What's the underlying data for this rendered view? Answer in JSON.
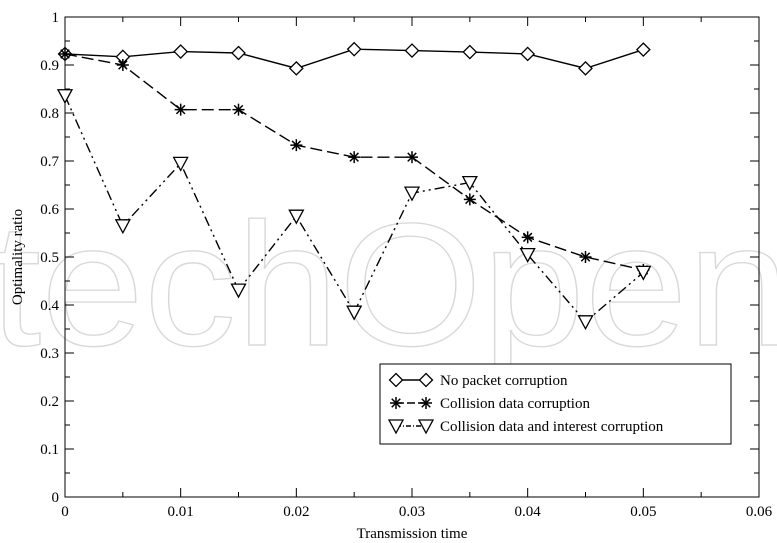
{
  "chart_data": {
    "type": "line",
    "xlabel": "Transmission time",
    "ylabel": "Optimality ratio",
    "xlim": [
      0,
      0.06
    ],
    "ylim": [
      0,
      1
    ],
    "xticks": [
      0,
      0.01,
      0.02,
      0.03,
      0.04,
      0.05,
      0.06
    ],
    "xtick_labels": [
      "0",
      "0.01",
      "0.02",
      "0.03",
      "0.04",
      "0.05",
      "0.06"
    ],
    "yticks": [
      0,
      0.1,
      0.2,
      0.3,
      0.4,
      0.5,
      0.6,
      0.7,
      0.8,
      0.9,
      1
    ],
    "ytick_labels": [
      "0",
      "0.1",
      "0.2",
      "0.3",
      "0.4",
      "0.5",
      "0.6",
      "0.7",
      "0.8",
      "0.9",
      "1"
    ],
    "grid": false,
    "legend_position": "lower-right",
    "x": [
      0,
      0.005,
      0.01,
      0.015,
      0.02,
      0.025,
      0.03,
      0.035,
      0.04,
      0.045,
      0.05
    ],
    "series": [
      {
        "name": "No packet corruption",
        "marker": "diamond",
        "line_style": "solid",
        "values": [
          0.923,
          0.917,
          0.928,
          0.925,
          0.893,
          0.933,
          0.93,
          0.927,
          0.923,
          0.893,
          0.932
        ]
      },
      {
        "name": "Collision data corruption",
        "marker": "asterisk",
        "line_style": "dashed",
        "values": [
          0.923,
          0.9,
          0.807,
          0.807,
          0.733,
          0.708,
          0.708,
          0.62,
          0.541,
          0.5,
          0.473
        ]
      },
      {
        "name": "Collision data and interest corruption",
        "marker": "triangle-down",
        "line_style": "dash-dot-dot",
        "values": [
          0.836,
          0.565,
          0.695,
          0.431,
          0.585,
          0.385,
          0.633,
          0.655,
          0.505,
          0.365,
          0.468
        ]
      }
    ],
    "colors": {
      "line": "#000000",
      "watermark": "#d9d9d9"
    },
    "watermark_text": "techOpen"
  }
}
